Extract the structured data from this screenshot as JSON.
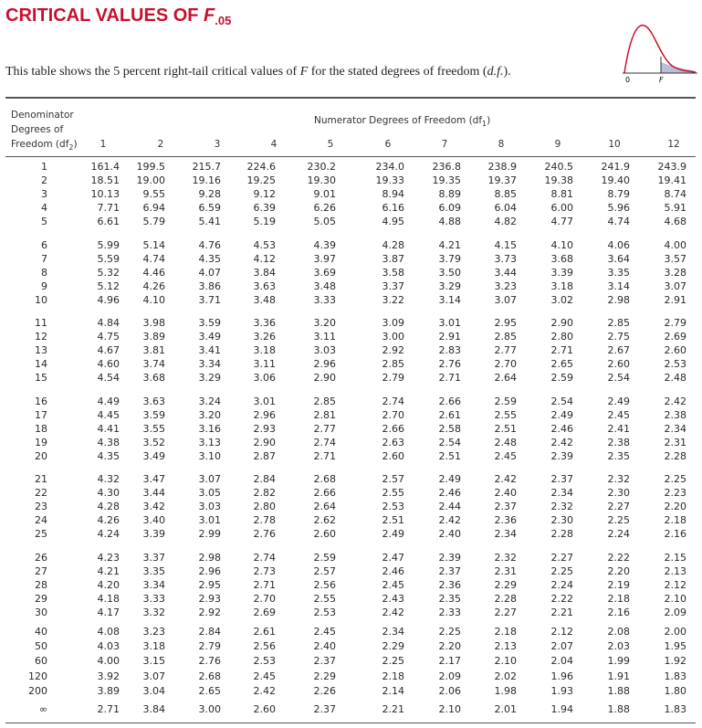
{
  "title": {
    "text": "CRITICAL VALUES OF",
    "symbol": "F",
    "subscript": ".05"
  },
  "description": [
    "This table shows the 5 percent right-tail critical values of ",
    "F",
    " for the stated degrees of freedom (",
    "d.f.",
    ")."
  ],
  "figure": {
    "labels": [
      "0",
      "F"
    ]
  },
  "table": {
    "row_header": [
      "Denominator",
      "Degrees of",
      "Freedom (df",
      "2",
      ")"
    ],
    "column_header": [
      "Numerator Degrees of Freedom (df",
      "1",
      ")"
    ],
    "columns": [
      "1",
      "2",
      "3",
      "4",
      "5",
      "6",
      "7",
      "8",
      "9",
      "10",
      "12"
    ],
    "groups": [
      [
        [
          "1",
          "161.4",
          "199.5",
          "215.7",
          "224.6",
          "230.2",
          "234.0",
          "236.8",
          "238.9",
          "240.5",
          "241.9",
          "243.9"
        ],
        [
          "2",
          "18.51",
          "19.00",
          "19.16",
          "19.25",
          "19.30",
          "19.33",
          "19.35",
          "19.37",
          "19.38",
          "19.40",
          "19.41"
        ],
        [
          "3",
          "10.13",
          "9.55",
          "9.28",
          "9.12",
          "9.01",
          "8.94",
          "8.89",
          "8.85",
          "8.81",
          "8.79",
          "8.74"
        ],
        [
          "4",
          "7.71",
          "6.94",
          "6.59",
          "6.39",
          "6.26",
          "6.16",
          "6.09",
          "6.04",
          "6.00",
          "5.96",
          "5.91"
        ],
        [
          "5",
          "6.61",
          "5.79",
          "5.41",
          "5.19",
          "5.05",
          "4.95",
          "4.88",
          "4.82",
          "4.77",
          "4.74",
          "4.68"
        ]
      ],
      [
        [
          "6",
          "5.99",
          "5.14",
          "4.76",
          "4.53",
          "4.39",
          "4.28",
          "4.21",
          "4.15",
          "4.10",
          "4.06",
          "4.00"
        ],
        [
          "7",
          "5.59",
          "4.74",
          "4.35",
          "4.12",
          "3.97",
          "3.87",
          "3.79",
          "3.73",
          "3.68",
          "3.64",
          "3.57"
        ],
        [
          "8",
          "5.32",
          "4.46",
          "4.07",
          "3.84",
          "3.69",
          "3.58",
          "3.50",
          "3.44",
          "3.39",
          "3.35",
          "3.28"
        ],
        [
          "9",
          "5.12",
          "4.26",
          "3.86",
          "3.63",
          "3.48",
          "3.37",
          "3.29",
          "3.23",
          "3.18",
          "3.14",
          "3.07"
        ],
        [
          "10",
          "4.96",
          "4.10",
          "3.71",
          "3.48",
          "3.33",
          "3.22",
          "3.14",
          "3.07",
          "3.02",
          "2.98",
          "2.91"
        ]
      ],
      [
        [
          "11",
          "4.84",
          "3.98",
          "3.59",
          "3.36",
          "3.20",
          "3.09",
          "3.01",
          "2.95",
          "2.90",
          "2.85",
          "2.79"
        ],
        [
          "12",
          "4.75",
          "3.89",
          "3.49",
          "3.26",
          "3.11",
          "3.00",
          "2.91",
          "2.85",
          "2.80",
          "2.75",
          "2.69"
        ],
        [
          "13",
          "4.67",
          "3.81",
          "3.41",
          "3.18",
          "3.03",
          "2.92",
          "2.83",
          "2.77",
          "2.71",
          "2.67",
          "2.60"
        ],
        [
          "14",
          "4.60",
          "3.74",
          "3.34",
          "3.11",
          "2.96",
          "2.85",
          "2.76",
          "2.70",
          "2.65",
          "2.60",
          "2.53"
        ],
        [
          "15",
          "4.54",
          "3.68",
          "3.29",
          "3.06",
          "2.90",
          "2.79",
          "2.71",
          "2.64",
          "2.59",
          "2.54",
          "2.48"
        ]
      ],
      [
        [
          "16",
          "4.49",
          "3.63",
          "3.24",
          "3.01",
          "2.85",
          "2.74",
          "2.66",
          "2.59",
          "2.54",
          "2.49",
          "2.42"
        ],
        [
          "17",
          "4.45",
          "3.59",
          "3.20",
          "2.96",
          "2.81",
          "2.70",
          "2.61",
          "2.55",
          "2.49",
          "2.45",
          "2.38"
        ],
        [
          "18",
          "4.41",
          "3.55",
          "3.16",
          "2.93",
          "2.77",
          "2.66",
          "2.58",
          "2.51",
          "2.46",
          "2.41",
          "2.34"
        ],
        [
          "19",
          "4.38",
          "3.52",
          "3.13",
          "2.90",
          "2.74",
          "2.63",
          "2.54",
          "2.48",
          "2.42",
          "2.38",
          "2.31"
        ],
        [
          "20",
          "4.35",
          "3.49",
          "3.10",
          "2.87",
          "2.71",
          "2.60",
          "2.51",
          "2.45",
          "2.39",
          "2.35",
          "2.28"
        ]
      ],
      [
        [
          "21",
          "4.32",
          "3.47",
          "3.07",
          "2.84",
          "2.68",
          "2.57",
          "2.49",
          "2.42",
          "2.37",
          "2.32",
          "2.25"
        ],
        [
          "22",
          "4.30",
          "3.44",
          "3.05",
          "2.82",
          "2.66",
          "2.55",
          "2.46",
          "2.40",
          "2.34",
          "2.30",
          "2.23"
        ],
        [
          "23",
          "4.28",
          "3.42",
          "3.03",
          "2.80",
          "2.64",
          "2.53",
          "2.44",
          "2.37",
          "2.32",
          "2.27",
          "2.20"
        ],
        [
          "24",
          "4.26",
          "3.40",
          "3.01",
          "2.78",
          "2.62",
          "2.51",
          "2.42",
          "2.36",
          "2.30",
          "2.25",
          "2.18"
        ],
        [
          "25",
          "4.24",
          "3.39",
          "2.99",
          "2.76",
          "2.60",
          "2.49",
          "2.40",
          "2.34",
          "2.28",
          "2.24",
          "2.16"
        ]
      ],
      [
        [
          "26",
          "4.23",
          "3.37",
          "2.98",
          "2.74",
          "2.59",
          "2.47",
          "2.39",
          "2.32",
          "2.27",
          "2.22",
          "2.15"
        ],
        [
          "27",
          "4.21",
          "3.35",
          "2.96",
          "2.73",
          "2.57",
          "2.46",
          "2.37",
          "2.31",
          "2.25",
          "2.20",
          "2.13"
        ],
        [
          "28",
          "4.20",
          "3.34",
          "2.95",
          "2.71",
          "2.56",
          "2.45",
          "2.36",
          "2.29",
          "2.24",
          "2.19",
          "2.12"
        ],
        [
          "29",
          "4.18",
          "3.33",
          "2.93",
          "2.70",
          "2.55",
          "2.43",
          "2.35",
          "2.28",
          "2.22",
          "2.18",
          "2.10"
        ],
        [
          "30",
          "4.17",
          "3.32",
          "2.92",
          "2.69",
          "2.53",
          "2.42",
          "2.33",
          "2.27",
          "2.21",
          "2.16",
          "2.09"
        ]
      ],
      [
        [
          "40",
          "4.08",
          "3.23",
          "2.84",
          "2.61",
          "2.45",
          "2.34",
          "2.25",
          "2.18",
          "2.12",
          "2.08",
          "2.00"
        ],
        [
          "50",
          "4.03",
          "3.18",
          "2.79",
          "2.56",
          "2.40",
          "2.29",
          "2.20",
          "2.13",
          "2.07",
          "2.03",
          "1.95"
        ],
        [
          "60",
          "4.00",
          "3.15",
          "2.76",
          "2.53",
          "2.37",
          "2.25",
          "2.17",
          "2.10",
          "2.04",
          "1.99",
          "1.92"
        ],
        [
          "120",
          "3.92",
          "3.07",
          "2.68",
          "2.45",
          "2.29",
          "2.18",
          "2.09",
          "2.02",
          "1.96",
          "1.91",
          "1.83"
        ],
        [
          "200",
          "3.89",
          "3.04",
          "2.65",
          "2.42",
          "2.26",
          "2.14",
          "2.06",
          "1.98",
          "1.93",
          "1.88",
          "1.80"
        ]
      ],
      [
        [
          "∞",
          "2.71",
          "3.84",
          "3.00",
          "2.60",
          "2.37",
          "2.21",
          "2.10",
          "2.01",
          "1.94",
          "1.88",
          "1.83"
        ]
      ]
    ]
  }
}
